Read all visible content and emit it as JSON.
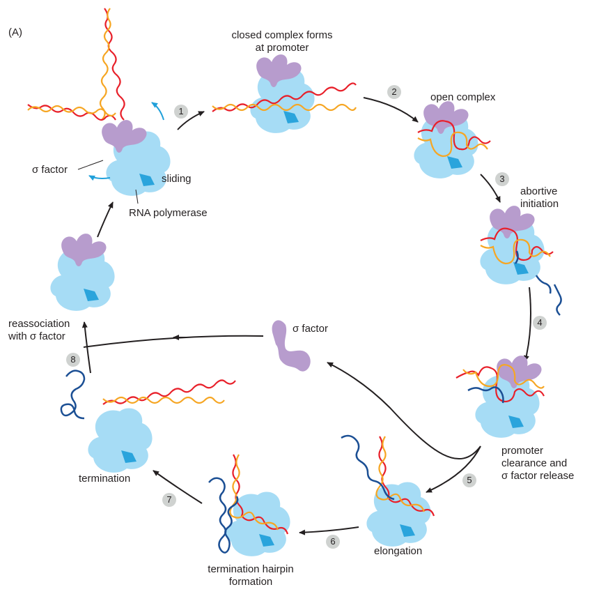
{
  "panel_label": "(A)",
  "colors": {
    "polymerase": "#a6dcf5",
    "polymerase_channel": "#2aa4dc",
    "sigma": "#b79ccd",
    "dna_template": "#e8202a",
    "dna_coding": "#f6a623",
    "rna": "#1b4f94",
    "flow_arrow": "#231f20",
    "motion_arrow": "#20a0da",
    "step_badge": "#cfd2d0"
  },
  "labels": {
    "closed_complex": [
      "closed complex forms",
      "at promoter"
    ],
    "open_complex": "open complex",
    "abortive": [
      "abortive",
      "initiation"
    ],
    "promoter_clearance": [
      "promoter",
      "clearance and",
      "σ factor release"
    ],
    "elongation": "elongation",
    "hairpin": [
      "termination hairpin",
      "formation"
    ],
    "termination": "termination",
    "reassociation": [
      "reassociation",
      "with σ factor"
    ],
    "sigma_free": "σ factor",
    "sigma_pointer": "σ factor",
    "sliding": "sliding",
    "rna_polymerase": "RNA polymerase"
  },
  "steps": [
    "1",
    "2",
    "3",
    "4",
    "5",
    "6",
    "7",
    "8"
  ]
}
